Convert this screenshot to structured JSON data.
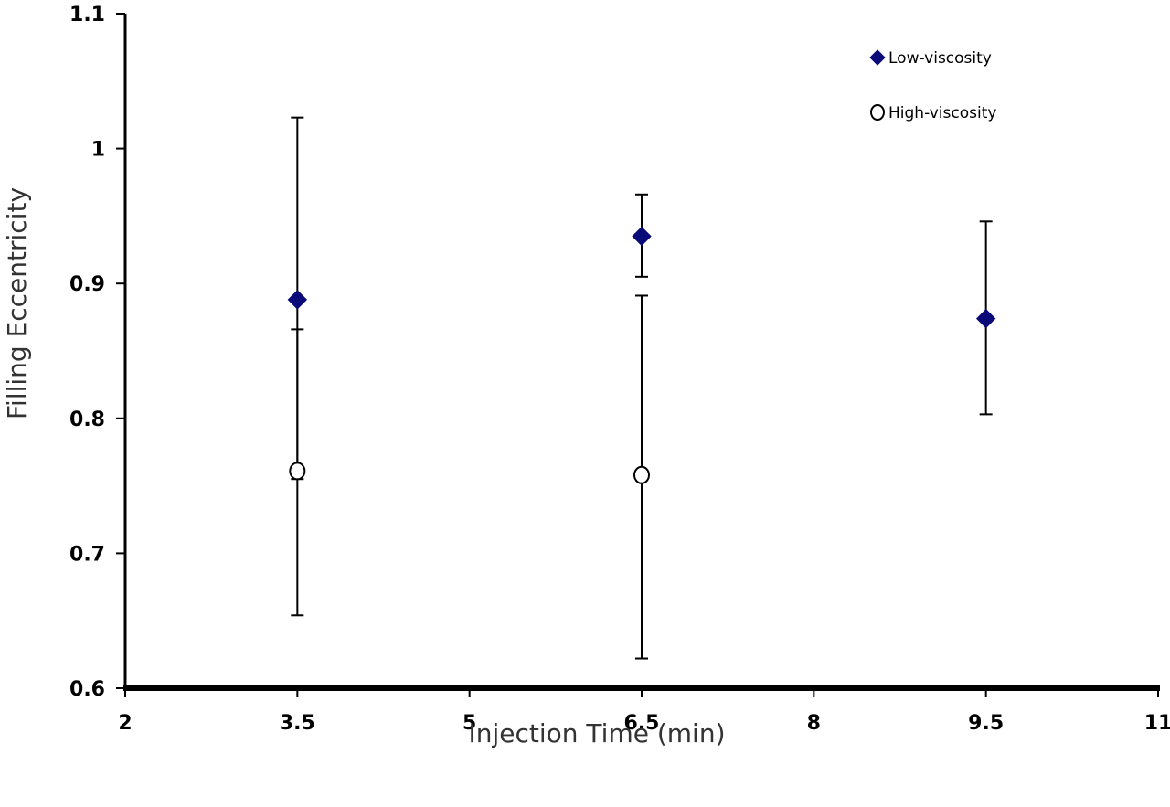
{
  "chart_data": {
    "type": "scatter",
    "title": "",
    "xlabel": "Injection Time (min)",
    "ylabel": "Filling Eccentricity",
    "xlim": [
      2,
      11
    ],
    "ylim": [
      0.6,
      1.1
    ],
    "x_ticks": [
      2,
      3.5,
      5,
      6.5,
      8,
      9.5,
      11
    ],
    "x_tick_labels": [
      "2",
      "3.5",
      "5",
      "6.5",
      "8",
      "9.5",
      "11"
    ],
    "y_ticks": [
      0.6,
      0.7,
      0.8,
      0.9,
      1.0,
      1.1
    ],
    "y_tick_labels": [
      "0.6",
      "0.7",
      "0.8",
      "0.9",
      "1",
      "1.1"
    ],
    "grid": false,
    "legend_position": "top-right",
    "series": [
      {
        "name": "Low-viscosity",
        "marker": "filled-diamond",
        "color": "#0a0a78",
        "points": [
          {
            "x": 3.5,
            "y": 0.888,
            "err_low": 0.755,
            "err_high": 1.023
          },
          {
            "x": 6.5,
            "y": 0.935,
            "err_low": 0.905,
            "err_high": 0.966
          },
          {
            "x": 9.5,
            "y": 0.874,
            "err_low": 0.803,
            "err_high": 0.946
          }
        ]
      },
      {
        "name": "High-viscosity",
        "marker": "open-circle",
        "color": "#000000",
        "points": [
          {
            "x": 3.5,
            "y": 0.761,
            "err_low": 0.654,
            "err_high": 0.866
          },
          {
            "x": 6.5,
            "y": 0.758,
            "err_low": 0.622,
            "err_high": 0.891
          }
        ]
      }
    ]
  }
}
